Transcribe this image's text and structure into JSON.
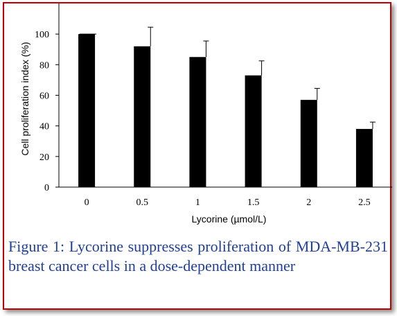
{
  "chart_data": {
    "type": "bar",
    "categories": [
      "0",
      "0.5",
      "1",
      "1.5",
      "2",
      "2.5"
    ],
    "values": [
      100,
      92,
      85,
      73,
      57,
      38
    ],
    "errors": [
      0,
      12.5,
      10.5,
      9.5,
      7.5,
      4.5
    ],
    "xlabel": "Lycorine (µmol/L)",
    "ylabel": "Cell proliferation index (%)",
    "ylim": [
      0,
      120
    ],
    "yticks": [
      0,
      20,
      40,
      60,
      80,
      100
    ],
    "bar_color": "#000000",
    "grid": false
  },
  "caption": "Figure 1: Lycorine suppresses proliferation of MDA-MB-231 breast cancer cells in a dose-dependent manner",
  "colors": {
    "frame": "#c00000",
    "caption": "#1f3f9a"
  }
}
